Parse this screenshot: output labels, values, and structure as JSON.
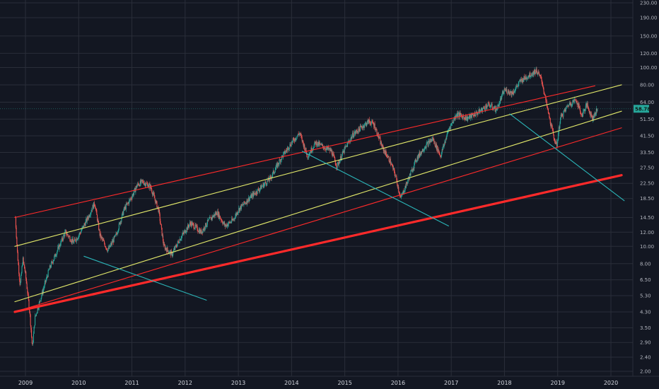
{
  "chart_data": {
    "type": "candlestick",
    "title": "",
    "xlabel": "",
    "ylabel": "",
    "y_scale": "log",
    "ylim": [
      1.9,
      240
    ],
    "xlim": [
      2008.8,
      2020.5
    ],
    "grid": true,
    "legend": "none",
    "y_ticks": [
      "2.00",
      "2.40",
      "2.90",
      "3.50",
      "4.30",
      "5.30",
      "6.50",
      "8.00",
      "10.00",
      "12.00",
      "14.50",
      "18.50",
      "22.50",
      "27.50",
      "33.50",
      "41.50",
      "51.50",
      "64.00",
      "80.00",
      "100.00",
      "120.00",
      "150.00",
      "190.00",
      "230.00"
    ],
    "x_ticks": [
      "2009",
      "2010",
      "2011",
      "2012",
      "2013",
      "2014",
      "2015",
      "2016",
      "2017",
      "2018",
      "2019",
      "2020"
    ],
    "last_price": "58.78",
    "colors": {
      "background": "#131722",
      "grid": "#2a2e39",
      "up": "#26a69a",
      "down": "#ef5350",
      "price_label": "#26a69a",
      "red_line": "#ff2a2a",
      "yellow_line": "#e2e86a",
      "cyan_line": "#2bb5b8"
    },
    "price_series": [
      [
        2008.81,
        14.5
      ],
      [
        2008.85,
        9.0
      ],
      [
        2008.9,
        6.0
      ],
      [
        2008.95,
        8.5
      ],
      [
        2009.0,
        7.0
      ],
      [
        2009.08,
        4.3
      ],
      [
        2009.13,
        2.7
      ],
      [
        2009.18,
        4.0
      ],
      [
        2009.3,
        5.3
      ],
      [
        2009.45,
        7.5
      ],
      [
        2009.6,
        9.5
      ],
      [
        2009.75,
        12.0
      ],
      [
        2009.9,
        10.5
      ],
      [
        2010.0,
        11.5
      ],
      [
        2010.15,
        14.0
      ],
      [
        2010.3,
        17.5
      ],
      [
        2010.4,
        11.5
      ],
      [
        2010.55,
        9.5
      ],
      [
        2010.7,
        11.5
      ],
      [
        2010.85,
        16.0
      ],
      [
        2011.0,
        19.0
      ],
      [
        2011.1,
        22.0
      ],
      [
        2011.2,
        23.0
      ],
      [
        2011.35,
        21.5
      ],
      [
        2011.5,
        16.0
      ],
      [
        2011.6,
        10.0
      ],
      [
        2011.75,
        9.0
      ],
      [
        2011.9,
        11.0
      ],
      [
        2012.1,
        13.5
      ],
      [
        2012.3,
        12.0
      ],
      [
        2012.45,
        14.0
      ],
      [
        2012.6,
        15.5
      ],
      [
        2012.75,
        13.0
      ],
      [
        2012.9,
        14.0
      ],
      [
        2013.0,
        16.0
      ],
      [
        2013.2,
        18.5
      ],
      [
        2013.4,
        21.0
      ],
      [
        2013.6,
        24.0
      ],
      [
        2013.8,
        31.0
      ],
      [
        2014.0,
        38.0
      ],
      [
        2014.15,
        43.0
      ],
      [
        2014.3,
        32.0
      ],
      [
        2014.45,
        38.0
      ],
      [
        2014.6,
        36.0
      ],
      [
        2014.75,
        34.0
      ],
      [
        2014.85,
        28.0
      ],
      [
        2015.0,
        35.0
      ],
      [
        2015.15,
        42.0
      ],
      [
        2015.3,
        46.0
      ],
      [
        2015.45,
        50.0
      ],
      [
        2015.55,
        48.0
      ],
      [
        2015.7,
        36.0
      ],
      [
        2015.85,
        30.0
      ],
      [
        2015.95,
        25.0
      ],
      [
        2016.05,
        18.5
      ],
      [
        2016.2,
        24.0
      ],
      [
        2016.35,
        31.0
      ],
      [
        2016.5,
        36.0
      ],
      [
        2016.65,
        40.0
      ],
      [
        2016.8,
        32.0
      ],
      [
        2016.95,
        45.0
      ],
      [
        2017.1,
        55.0
      ],
      [
        2017.3,
        52.0
      ],
      [
        2017.5,
        56.0
      ],
      [
        2017.7,
        62.0
      ],
      [
        2017.85,
        58.0
      ],
      [
        2018.0,
        75.0
      ],
      [
        2018.15,
        72.0
      ],
      [
        2018.3,
        84.0
      ],
      [
        2018.45,
        90.0
      ],
      [
        2018.6,
        96.0
      ],
      [
        2018.7,
        85.0
      ],
      [
        2018.8,
        60.0
      ],
      [
        2018.9,
        44.0
      ],
      [
        2018.98,
        36.0
      ],
      [
        2019.05,
        52.0
      ],
      [
        2019.2,
        62.0
      ],
      [
        2019.35,
        66.0
      ],
      [
        2019.45,
        54.0
      ],
      [
        2019.55,
        62.0
      ],
      [
        2019.65,
        52.0
      ],
      [
        2019.75,
        58.78
      ]
    ],
    "trend_lines": [
      {
        "color": "red",
        "width": "thin",
        "from": [
          2008.8,
          14.5
        ],
        "to": [
          2019.7,
          79.0
        ]
      },
      {
        "color": "red",
        "width": "thin",
        "from": [
          2008.8,
          4.3
        ],
        "to": [
          2020.2,
          46.0
        ]
      },
      {
        "color": "red",
        "width": "thick",
        "from": [
          2008.8,
          4.3
        ],
        "to": [
          2020.2,
          25.0
        ]
      },
      {
        "color": "yellow",
        "width": "thin",
        "from": [
          2008.8,
          10.0
        ],
        "to": [
          2020.2,
          80.0
        ]
      },
      {
        "color": "yellow",
        "width": "thin",
        "from": [
          2008.8,
          4.9
        ],
        "to": [
          2020.2,
          57.0
        ]
      },
      {
        "color": "cyan",
        "width": "thin",
        "from": [
          2010.1,
          8.8
        ],
        "to": [
          2012.4,
          5.0
        ]
      },
      {
        "color": "cyan",
        "width": "thin",
        "from": [
          2014.2,
          34.0
        ],
        "to": [
          2016.95,
          13.0
        ]
      },
      {
        "color": "cyan",
        "width": "thin",
        "from": [
          2018.1,
          55.0
        ],
        "to": [
          2020.25,
          18.0
        ]
      }
    ]
  }
}
